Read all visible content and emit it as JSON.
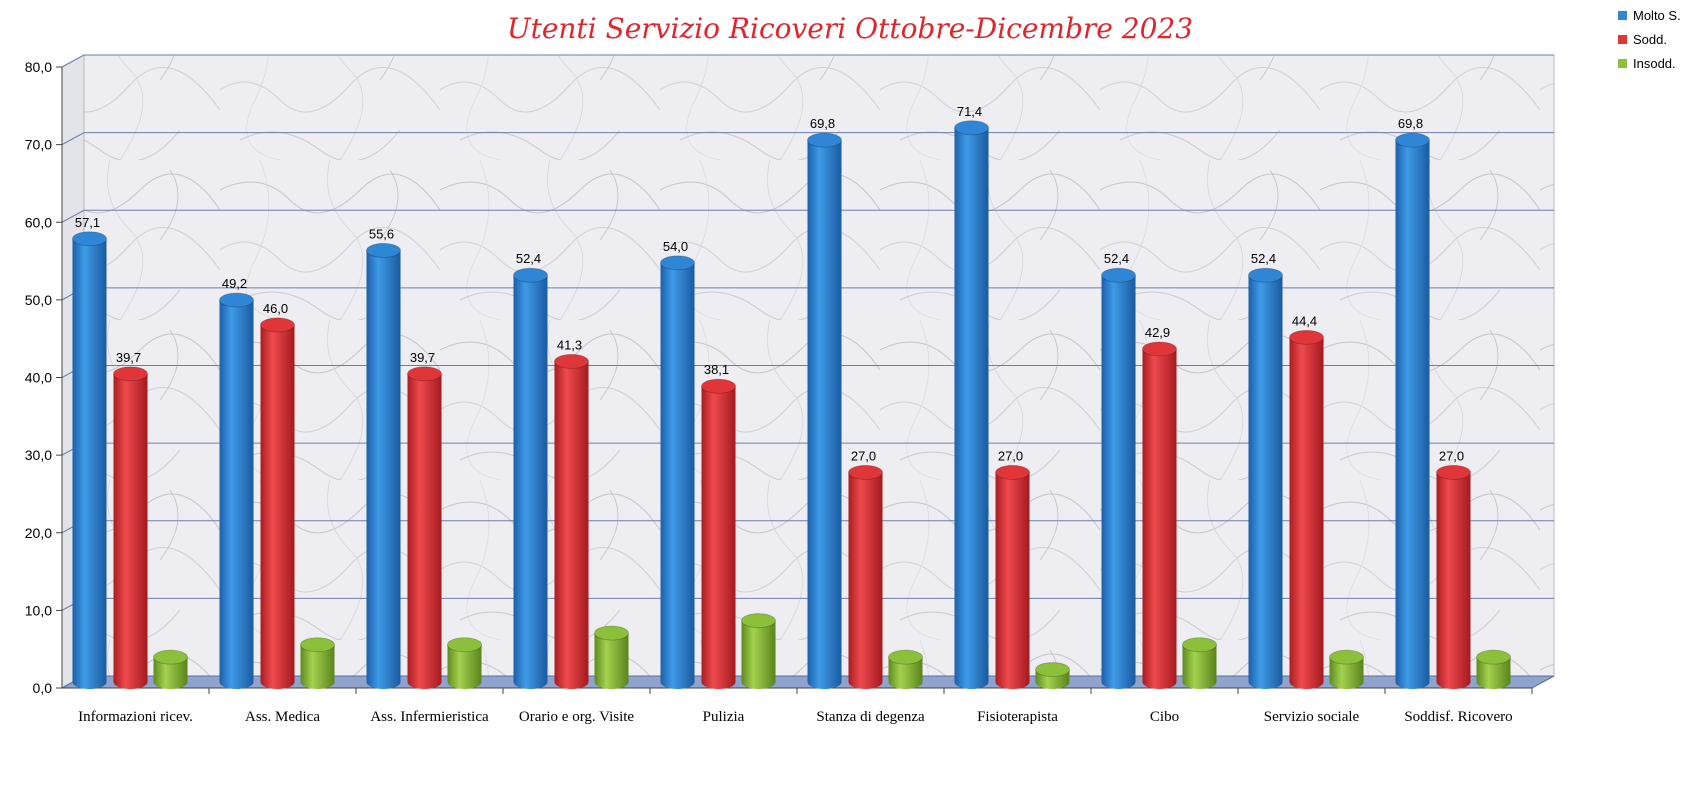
{
  "chart_data": {
    "type": "bar",
    "title": "Utenti Servizio Ricoveri Ottobre-Dicembre 2023",
    "xlabel": "",
    "ylabel": "",
    "ylim": [
      0,
      80
    ],
    "yticks": [
      "0,0",
      "10,0",
      "20,0",
      "30,0",
      "40,0",
      "50,0",
      "60,0",
      "70,0",
      "80,0"
    ],
    "grid": true,
    "legend_position": "top-right",
    "categories": [
      "Informazioni ricev.",
      "Ass. Medica",
      "Ass. Infermieristica",
      "Orario e org. Visite",
      "Pulizia",
      "Stanza di degenza",
      "Fisioterapista",
      "Cibo",
      "Servizio sociale",
      "Soddisf. Ricovero"
    ],
    "series": [
      {
        "name": "Molto S.",
        "color": "#2f86d6",
        "values": [
          57.1,
          49.2,
          55.6,
          52.4,
          54.0,
          69.8,
          71.4,
          52.4,
          52.4,
          69.8
        ],
        "labels": [
          "57,1",
          "49,2",
          "55,6",
          "52,4",
          "54,0",
          "69,8",
          "71,4",
          "52,4",
          "52,4",
          "69,8"
        ]
      },
      {
        "name": "Sodd.",
        "color": "#e0363a",
        "values": [
          39.7,
          46.0,
          39.7,
          41.3,
          38.1,
          27.0,
          27.0,
          42.9,
          44.4,
          27.0
        ],
        "labels": [
          "39,7",
          "46,0",
          "39,7",
          "41,3",
          "38,1",
          "27,0",
          "27,0",
          "42,9",
          "44,4",
          "27,0"
        ]
      },
      {
        "name": "Insodd.",
        "color": "#8cbf3a",
        "values": [
          3.2,
          4.8,
          4.8,
          6.3,
          7.9,
          3.2,
          1.6,
          4.8,
          3.2,
          3.2
        ],
        "labels": []
      }
    ]
  }
}
